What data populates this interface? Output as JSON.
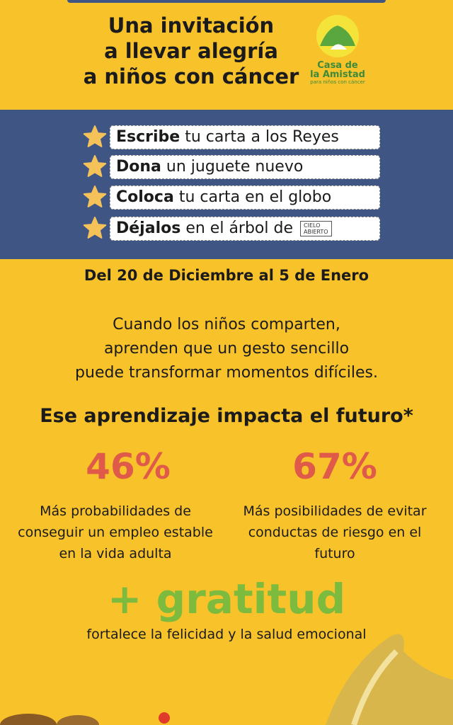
{
  "header": {
    "title_lines": [
      "Una invitación",
      "a llevar alegría",
      "a niños con cáncer"
    ],
    "logo": {
      "name_lines": [
        "Casa de",
        "la Amistad"
      ],
      "tagline": "para niños con cáncer"
    }
  },
  "steps": [
    {
      "bold": "Escribe",
      "rest": "tu carta a los Reyes"
    },
    {
      "bold": "Dona",
      "rest": "un juguete nuevo"
    },
    {
      "bold": "Coloca",
      "rest": "tu carta en el globo"
    },
    {
      "bold": "Déjalos",
      "rest": "en el árbol de",
      "logo_lines": [
        "CIELO",
        "ABIERTO"
      ]
    }
  ],
  "dates": "Del 20 de Diciembre al 5 de Enero",
  "message_lines": [
    "Cuando los niños comparten,",
    "aprenden que un gesto sencillo",
    "puede transformar momentos difíciles."
  ],
  "heading": "Ese aprendizaje impacta el futuro*",
  "stats": [
    {
      "value": "46%",
      "description_lines": [
        "Más probabilidades de",
        "conseguir un empleo estable",
        "en la vida adulta"
      ]
    },
    {
      "value": "67%",
      "description_lines": [
        "Más posibilidades de evitar",
        "conductas de riesgo en el",
        "futuro"
      ]
    }
  ],
  "gratitude": {
    "title": "+ gratitud",
    "subtitle": "fortalece la felicidad y la salud emocional"
  }
}
